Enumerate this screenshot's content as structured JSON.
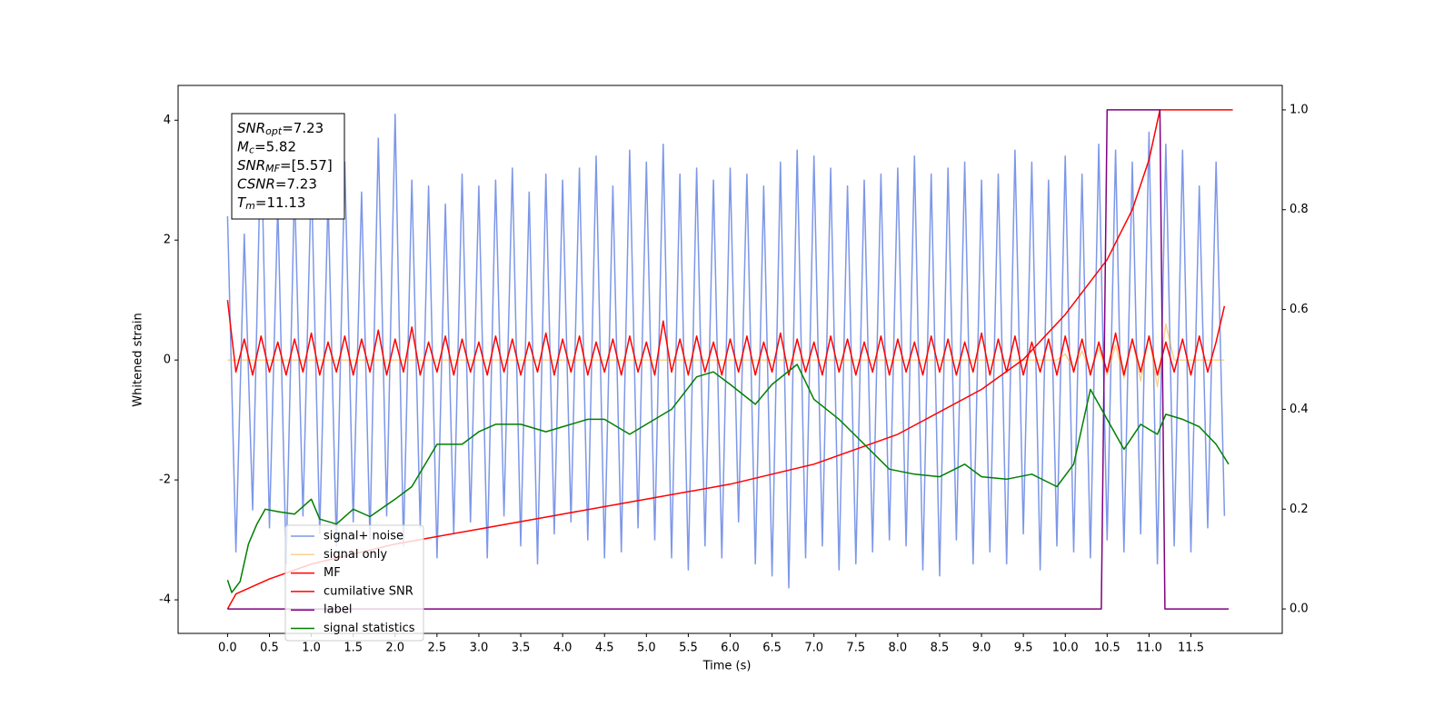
{
  "chart_data": {
    "type": "line",
    "xlabel": "Time (s)",
    "ylabel": "Whitened strain",
    "xlim": [
      -0.59,
      12.59
    ],
    "ylim": [
      -4.56,
      4.58
    ],
    "y2lim": [
      -0.049,
      1.049
    ],
    "xticks": [
      {
        "value": 0,
        "label": "0.0"
      },
      0.5,
      {
        "value": 1,
        "label": "1.0"
      },
      1.5,
      {
        "value": 2,
        "label": "2.0"
      },
      2.5,
      {
        "value": 3,
        "label": "3.0"
      },
      3.5,
      {
        "value": 4,
        "label": "4.0"
      },
      4.5,
      {
        "value": 5,
        "label": "5.0"
      },
      5.5,
      {
        "value": 6,
        "label": "6.0"
      },
      6.5,
      {
        "value": 7,
        "label": "7.0"
      },
      7.5,
      {
        "value": 8,
        "label": "8.0"
      },
      8.5,
      {
        "value": 9,
        "label": "9.0"
      },
      9.5,
      {
        "value": 10,
        "label": "10.0"
      },
      10.5,
      {
        "value": 11,
        "label": "11.0"
      },
      11.5
    ],
    "yticks": [
      -4,
      -2,
      0,
      2,
      4
    ],
    "y2ticks": [
      {
        "value": 0,
        "label": "0.0"
      },
      0.2,
      0.4,
      0.6,
      0.8,
      {
        "value": 1,
        "label": "1.0"
      }
    ],
    "legend": "lower left",
    "annotation": [
      {
        "name": "SNR",
        "sub": "opt",
        "text": "=7.23"
      },
      {
        "name": "M",
        "sub": "c",
        "text": "=5.82"
      },
      {
        "name": "SNR",
        "sub": "MF",
        "text": "=[5.57]"
      },
      {
        "name": "CSNR",
        "text": "=7.23"
      },
      {
        "name": "T",
        "sub": "m",
        "text": "=11.13"
      }
    ],
    "x": [
      0,
      0.1,
      0.2,
      0.3,
      0.4,
      0.5,
      0.6,
      0.7,
      0.8,
      0.9,
      1,
      1.1,
      1.2,
      1.3,
      1.4,
      1.5,
      1.6,
      1.7,
      1.8,
      1.9,
      2,
      2.1,
      2.2,
      2.3,
      2.4,
      2.5,
      2.6,
      2.7,
      2.8,
      2.9,
      3,
      3.1,
      3.2,
      3.3,
      3.4,
      3.5,
      3.6,
      3.7,
      3.8,
      3.9,
      4,
      4.1,
      4.2,
      4.3,
      4.4,
      4.5,
      4.6,
      4.7,
      4.8,
      4.9,
      5,
      5.1,
      5.2,
      5.3,
      5.4,
      5.5,
      5.6,
      5.7,
      5.8,
      5.9,
      6,
      6.1,
      6.2,
      6.3,
      6.4,
      6.5,
      6.6,
      6.7,
      6.8,
      6.9,
      7,
      7.1,
      7.2,
      7.3,
      7.4,
      7.5,
      7.6,
      7.7,
      7.8,
      7.9,
      8,
      8.1,
      8.2,
      8.3,
      8.4,
      8.5,
      8.6,
      8.7,
      8.8,
      8.9,
      9,
      9.1,
      9.2,
      9.3,
      9.4,
      9.5,
      9.6,
      9.7,
      9.8,
      9.9,
      10,
      10.1,
      10.2,
      10.3,
      10.4,
      10.5,
      10.6,
      10.7,
      10.8,
      10.9,
      11,
      11.1,
      11.2,
      11.3,
      11.4,
      11.5,
      11.6,
      11.7,
      11.8,
      11.9
    ],
    "series": [
      {
        "name": "signal+ noise",
        "color": "#6f8ce6",
        "alpha": 0.9,
        "values": [
          2.4,
          -3.2,
          2.1,
          -2.5,
          3.8,
          -2.8,
          2.6,
          -3.4,
          2.9,
          -2.6,
          3.1,
          -2.9,
          2.7,
          -3.1,
          3.3,
          -2.7,
          2.8,
          -3.0,
          3.7,
          -2.6,
          4.1,
          -3.1,
          3.0,
          -2.8,
          2.9,
          -3.3,
          2.6,
          -2.9,
          3.1,
          -2.7,
          2.9,
          -3.3,
          3.0,
          -2.6,
          3.2,
          -3.1,
          2.8,
          -3.4,
          3.1,
          -2.9,
          3.0,
          -2.7,
          3.2,
          -3.0,
          3.4,
          -3.3,
          2.9,
          -3.2,
          3.5,
          -2.8,
          3.3,
          -3.0,
          3.6,
          -3.3,
          3.1,
          -3.5,
          3.2,
          -3.1,
          3.0,
          -3.3,
          3.2,
          -2.7,
          3.1,
          -3.4,
          2.9,
          -3.6,
          3.3,
          -3.8,
          3.5,
          -3.3,
          3.4,
          -3.1,
          3.2,
          -3.5,
          2.9,
          -3.4,
          3.0,
          -3.2,
          3.1,
          -3.0,
          3.2,
          -3.1,
          3.4,
          -3.5,
          3.1,
          -3.6,
          3.2,
          -3.0,
          3.3,
          -3.4,
          3.0,
          -3.2,
          3.1,
          -3.4,
          3.5,
          -2.9,
          3.3,
          -3.5,
          3.0,
          -3.1,
          3.4,
          -3.2,
          3.1,
          -3.3,
          3.6,
          -3.0,
          3.5,
          -3.2,
          3.3,
          -2.9,
          3.8,
          -3.4,
          3.6,
          -3.1,
          3.5,
          -3.2,
          2.9,
          -2.8,
          3.3,
          -2.6
        ]
      },
      {
        "name": "signal only",
        "color": "#f5a623",
        "alpha": 0.5,
        "values": [
          0,
          0,
          0,
          0,
          0,
          0,
          0,
          0,
          0,
          0,
          0,
          0,
          0,
          0,
          0,
          0,
          0,
          0,
          0,
          0,
          0,
          0,
          0,
          0,
          0,
          0,
          0,
          0,
          0,
          0,
          0,
          0,
          0,
          0,
          0,
          0,
          0,
          0,
          0,
          0,
          0,
          0,
          0,
          0,
          0,
          0,
          0,
          0,
          0,
          0,
          0,
          0,
          0,
          0,
          0,
          0,
          0,
          0,
          0,
          0,
          0,
          0,
          0,
          0,
          0,
          0,
          0,
          0,
          0,
          0,
          0,
          0,
          0,
          0,
          0,
          0,
          0,
          0,
          0,
          0,
          0,
          0,
          0,
          0,
          0,
          0,
          0,
          0,
          0,
          0,
          0,
          0,
          0,
          0,
          0,
          0,
          0,
          0,
          0,
          0,
          0.1,
          -0.15,
          0.15,
          -0.2,
          0.2,
          -0.25,
          0.25,
          -0.3,
          0.35,
          -0.35,
          0.4,
          -0.45,
          0.6,
          0,
          0,
          0,
          0,
          0,
          0,
          0
        ]
      },
      {
        "name": "MF",
        "color": "#ff0000",
        "values": [
          1.0,
          -0.2,
          0.35,
          -0.25,
          0.4,
          -0.2,
          0.3,
          -0.25,
          0.35,
          -0.2,
          0.45,
          -0.25,
          0.3,
          -0.2,
          0.4,
          -0.25,
          0.35,
          -0.2,
          0.5,
          -0.25,
          0.35,
          -0.2,
          0.55,
          -0.25,
          0.3,
          -0.2,
          0.4,
          -0.25,
          0.35,
          -0.2,
          0.3,
          -0.25,
          0.4,
          -0.2,
          0.35,
          -0.25,
          0.3,
          -0.2,
          0.45,
          -0.25,
          0.35,
          -0.2,
          0.4,
          -0.25,
          0.3,
          -0.2,
          0.35,
          -0.25,
          0.4,
          -0.2,
          0.3,
          -0.25,
          0.65,
          -0.2,
          0.35,
          -0.25,
          0.4,
          -0.2,
          0.3,
          -0.25,
          0.35,
          -0.2,
          0.4,
          -0.25,
          0.3,
          -0.2,
          0.45,
          -0.25,
          0.35,
          -0.2,
          0.3,
          -0.25,
          0.4,
          -0.2,
          0.35,
          -0.25,
          0.3,
          -0.2,
          0.4,
          -0.25,
          0.35,
          -0.2,
          0.3,
          -0.25,
          0.4,
          -0.2,
          0.35,
          -0.25,
          0.3,
          -0.2,
          0.45,
          -0.25,
          0.35,
          -0.2,
          0.4,
          -0.25,
          0.3,
          -0.2,
          0.35,
          -0.25,
          0.4,
          -0.2,
          0.35,
          -0.25,
          0.3,
          -0.2,
          0.45,
          -0.25,
          0.35,
          -0.2,
          0.4,
          -0.25,
          0.3,
          -0.2,
          0.35,
          -0.25,
          0.4,
          -0.2,
          0.3,
          0.9
        ]
      },
      {
        "name": "cumilative SNR",
        "color": "#ff0000",
        "axis": "y2",
        "x": [
          0,
          0.1,
          0.5,
          1,
          2,
          3,
          4,
          5,
          6,
          7,
          8,
          9,
          9.5,
          10,
          10.5,
          10.8,
          11,
          11.13,
          12
        ],
        "values": [
          0,
          0.03,
          0.06,
          0.09,
          0.13,
          0.16,
          0.19,
          0.22,
          0.25,
          0.29,
          0.35,
          0.44,
          0.5,
          0.59,
          0.7,
          0.8,
          0.9,
          1.0,
          1.0
        ]
      },
      {
        "name": "label",
        "color": "#800080",
        "axis": "y2",
        "x": [
          0,
          10.43,
          10.5,
          11.13,
          11.19,
          11.95
        ],
        "values": [
          0,
          0,
          1,
          1,
          0,
          0
        ]
      },
      {
        "name": "signal statistics",
        "color": "#007f00",
        "axis": "y2",
        "x": [
          0,
          0.05,
          0.15,
          0.25,
          0.35,
          0.45,
          0.6,
          0.8,
          1.0,
          1.1,
          1.3,
          1.5,
          1.7,
          2.0,
          2.2,
          2.5,
          2.8,
          3.0,
          3.2,
          3.5,
          3.8,
          4.0,
          4.3,
          4.5,
          4.8,
          5.0,
          5.3,
          5.6,
          5.8,
          6.0,
          6.3,
          6.5,
          6.8,
          7.0,
          7.3,
          7.6,
          7.9,
          8.2,
          8.5,
          8.8,
          9.0,
          9.3,
          9.6,
          9.9,
          10.1,
          10.3,
          10.4,
          10.5,
          10.7,
          10.9,
          11.1,
          11.2,
          11.4,
          11.6,
          11.8,
          11.95
        ],
        "values": [
          0.058,
          0.033,
          0.055,
          0.13,
          0.17,
          0.2,
          0.195,
          0.19,
          0.22,
          0.18,
          0.17,
          0.2,
          0.185,
          0.22,
          0.245,
          0.33,
          0.33,
          0.355,
          0.37,
          0.37,
          0.355,
          0.365,
          0.38,
          0.38,
          0.35,
          0.37,
          0.4,
          0.465,
          0.475,
          0.45,
          0.41,
          0.45,
          0.49,
          0.42,
          0.38,
          0.33,
          0.28,
          0.27,
          0.265,
          0.29,
          0.265,
          0.26,
          0.27,
          0.245,
          0.29,
          0.44,
          0.41,
          0.38,
          0.32,
          0.37,
          0.35,
          0.39,
          0.38,
          0.365,
          0.33,
          0.29
        ]
      }
    ]
  }
}
